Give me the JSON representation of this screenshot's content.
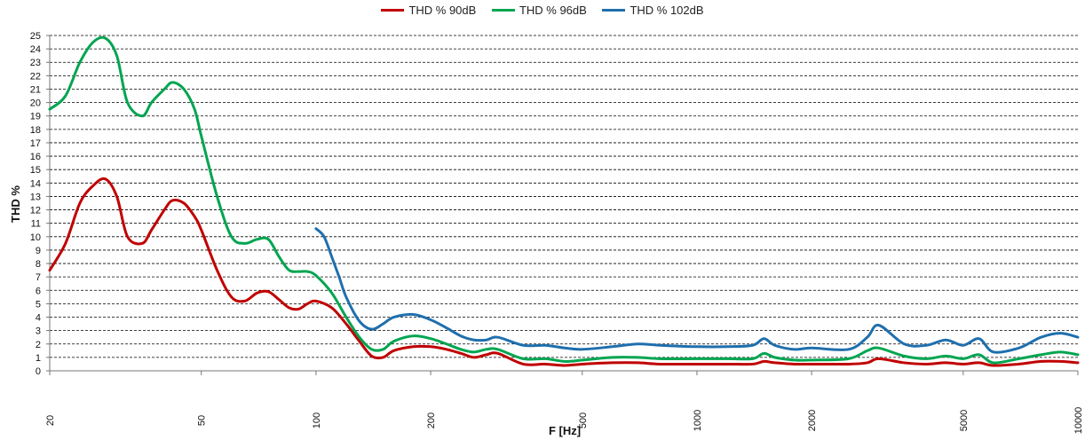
{
  "chart_data": {
    "type": "line",
    "title": "",
    "xlabel": "F [Hz]",
    "ylabel": "THD %",
    "x_scale": "log",
    "xlim": [
      20,
      10000
    ],
    "ylim": [
      0,
      25
    ],
    "x_ticks": [
      20,
      50,
      100,
      200,
      500,
      1000,
      2000,
      5000,
      10000
    ],
    "x_tick_labels": [
      "20",
      "50",
      "100",
      "200",
      "500",
      "1000",
      "2000",
      "5000",
      "10000"
    ],
    "y_ticks": [
      0,
      1,
      2,
      3,
      4,
      5,
      6,
      7,
      8,
      9,
      10,
      11,
      12,
      13,
      14,
      15,
      16,
      17,
      18,
      19,
      20,
      21,
      22,
      23,
      24,
      25
    ],
    "y_tick_labels": [
      "0",
      "1",
      "2",
      "3",
      "4",
      "5",
      "6",
      "7",
      "8",
      "9",
      "10",
      "11",
      "12",
      "13",
      "14",
      "15",
      "16",
      "17",
      "18",
      "19",
      "20",
      "21",
      "22",
      "23",
      "24",
      "25"
    ],
    "grid": "horizontal",
    "legend_position": "top-center",
    "series": [
      {
        "name": "THD % 90dB",
        "color": "#c00000",
        "x": [
          20,
          22,
          24,
          26,
          28,
          30,
          32,
          35,
          37,
          40,
          42,
          45,
          48,
          50,
          55,
          60,
          65,
          70,
          75,
          80,
          85,
          90,
          95,
          100,
          110,
          120,
          130,
          140,
          150,
          160,
          180,
          200,
          220,
          240,
          260,
          280,
          300,
          350,
          400,
          450,
          500,
          600,
          700,
          800,
          1000,
          1200,
          1400,
          1500,
          1600,
          1800,
          2000,
          2500,
          2800,
          3000,
          3500,
          4000,
          4500,
          5000,
          5500,
          6000,
          7000,
          8000,
          9000,
          10000
        ],
        "values": [
          7.5,
          9.5,
          12.5,
          13.8,
          14.3,
          13.0,
          10.0,
          9.5,
          10.5,
          12.0,
          12.7,
          12.5,
          11.5,
          10.5,
          7.5,
          5.5,
          5.2,
          5.8,
          5.9,
          5.3,
          4.7,
          4.6,
          5.0,
          5.2,
          4.7,
          3.5,
          2.2,
          1.1,
          1.0,
          1.5,
          1.8,
          1.8,
          1.6,
          1.3,
          1.0,
          1.2,
          1.3,
          0.5,
          0.5,
          0.4,
          0.5,
          0.6,
          0.6,
          0.5,
          0.5,
          0.5,
          0.5,
          0.7,
          0.6,
          0.5,
          0.5,
          0.5,
          0.6,
          0.9,
          0.6,
          0.5,
          0.6,
          0.5,
          0.6,
          0.4,
          0.5,
          0.7,
          0.7,
          0.6
        ]
      },
      {
        "name": "THD % 96dB",
        "color": "#00a550",
        "x": [
          20,
          22,
          24,
          26,
          28,
          30,
          32,
          35,
          37,
          40,
          42,
          45,
          48,
          50,
          55,
          60,
          65,
          70,
          75,
          80,
          85,
          90,
          95,
          100,
          110,
          120,
          130,
          140,
          150,
          160,
          180,
          200,
          220,
          240,
          260,
          280,
          300,
          350,
          400,
          450,
          500,
          600,
          700,
          800,
          1000,
          1200,
          1400,
          1500,
          1600,
          1800,
          2000,
          2500,
          2800,
          3000,
          3500,
          4000,
          4500,
          5000,
          5500,
          6000,
          7000,
          8000,
          9000,
          10000
        ],
        "values": [
          19.5,
          20.5,
          23.0,
          24.5,
          24.8,
          23.5,
          20.0,
          19.0,
          20.0,
          21.0,
          21.5,
          21.0,
          19.5,
          17.5,
          13.0,
          10.0,
          9.5,
          9.8,
          9.8,
          8.5,
          7.5,
          7.4,
          7.4,
          7.1,
          5.8,
          4.0,
          2.5,
          1.6,
          1.6,
          2.2,
          2.6,
          2.4,
          2.0,
          1.6,
          1.4,
          1.6,
          1.6,
          0.9,
          0.9,
          0.7,
          0.8,
          1.0,
          1.0,
          0.9,
          0.9,
          0.9,
          0.9,
          1.3,
          1.0,
          0.8,
          0.8,
          0.9,
          1.5,
          1.7,
          1.1,
          0.9,
          1.1,
          0.9,
          1.2,
          0.6,
          0.9,
          1.2,
          1.4,
          1.2
        ]
      },
      {
        "name": "THD % 102dB",
        "color": "#1f6fad",
        "x": [
          100,
          105,
          110,
          115,
          120,
          130,
          140,
          150,
          160,
          180,
          200,
          220,
          240,
          260,
          280,
          300,
          350,
          400,
          450,
          500,
          600,
          700,
          800,
          1000,
          1200,
          1400,
          1500,
          1600,
          1800,
          2000,
          2500,
          2800,
          3000,
          3500,
          4000,
          4500,
          5000,
          5500,
          6000,
          7000,
          8000,
          9000,
          10000
        ],
        "values": [
          10.6,
          10.0,
          8.5,
          7.0,
          5.5,
          3.7,
          3.1,
          3.5,
          4.0,
          4.2,
          3.8,
          3.2,
          2.6,
          2.3,
          2.3,
          2.5,
          1.9,
          1.9,
          1.7,
          1.6,
          1.8,
          2.0,
          1.9,
          1.8,
          1.8,
          1.9,
          2.4,
          1.9,
          1.6,
          1.7,
          1.6,
          2.5,
          3.4,
          2.0,
          1.9,
          2.3,
          1.9,
          2.4,
          1.4,
          1.7,
          2.5,
          2.8,
          2.5
        ]
      }
    ]
  }
}
